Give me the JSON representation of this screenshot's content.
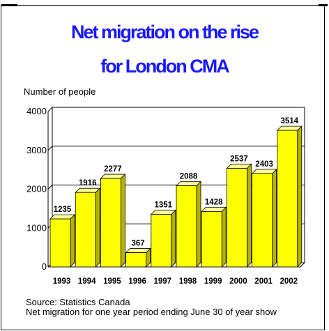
{
  "title_lines": [
    "Net migration on the rise",
    "for London CMA"
  ],
  "source": "Source:  Statistics Canada",
  "note": "Net migration for one year period ending June 30 of year show",
  "colors": {
    "title": "#1919ff",
    "bar_face": "#ffff00",
    "bar_top": "#ffff99",
    "bar_side": "#b3b300",
    "grid": "#000000"
  },
  "chart_data": {
    "type": "bar",
    "title": "Net migration on the rise for London CMA",
    "xlabel": "",
    "ylabel": "Number of people",
    "categories": [
      "1993",
      "1994",
      "1995",
      "1996",
      "1997",
      "1998",
      "1999",
      "2000",
      "2001",
      "2002"
    ],
    "values": [
      1235,
      1916,
      2277,
      367,
      1351,
      2088,
      1428,
      2537,
      2403,
      3514
    ],
    "y_ticks": [
      "0",
      "1000",
      "2000",
      "3000",
      "4000"
    ],
    "ylim": [
      0,
      4000
    ],
    "grid": true,
    "legend": "none",
    "data_labels": true
  }
}
